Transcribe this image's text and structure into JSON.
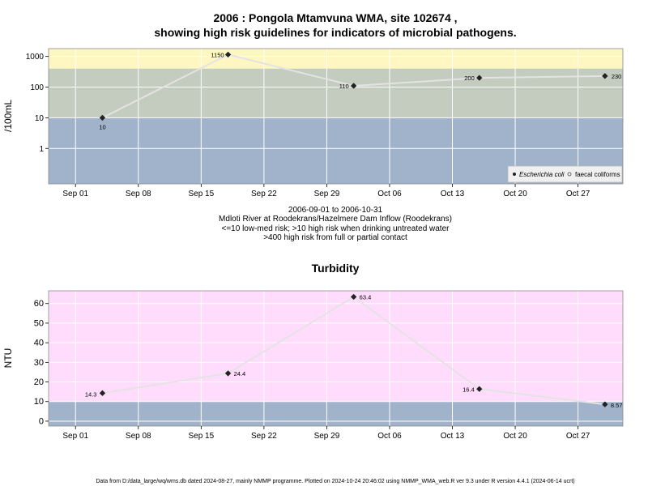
{
  "colors": {
    "high_risk_band": "#fff6c2",
    "med_risk_band": "#c4cbbf",
    "low_risk_band": "#a1b2cb",
    "turbidity_high_band": "#ffdcfc",
    "turbidity_low_band": "#a1b2cb",
    "series_line": "#e3e3e3",
    "marker": "#222222"
  },
  "top_title_line1": "2006 : Pongola Mtamvuna WMA, site 102674 ,",
  "top_title_line2": "showing high risk guidelines for indicators of microbial pathogens.",
  "top_caption": [
    "2006-09-01 to 2006-10-31",
    "Mdloti River at Roodekrans/Hazelmere Dam Inflow (Roodekrans)",
    "<=10 low-med risk; >10 high risk when drinking untreated water",
    ">400 high risk from full or partial contact"
  ],
  "bottom_title": "Turbidity",
  "footer": "Data from D:/data_large/wq/wms.db dated 2024-08-27, mainly NMMP programme. Plotted on 2024-10-24 20:46:02 using NMMP_WMA_web.R ver 9.3 under R version 4.4.1 (2024-06-14 ucrt)",
  "legend": {
    "ecoli_label": "Escherichia coli",
    "coliform_label": "faecal coliforms"
  },
  "chart_data": [
    {
      "type": "line",
      "ylabel": "/100mL",
      "y_scale": "log",
      "y_ticks": [
        "1",
        "10",
        "100",
        "1000"
      ],
      "x_ticks": [
        "Sep 01",
        "Sep 08",
        "Sep 15",
        "Sep 22",
        "Sep 29",
        "Oct 06",
        "Oct 13",
        "Oct 20",
        "Oct 27"
      ],
      "x_range": [
        "2006-08-29",
        "2006-11-01"
      ],
      "y_range": [
        0.07,
        1800
      ],
      "thresholds": [
        10,
        400
      ],
      "series": [
        {
          "name": "Escherichia coli",
          "x": [
            "2006-09-04",
            "2006-09-18",
            "2006-10-02",
            "2006-10-16",
            "2006-10-30"
          ],
          "values": [
            10,
            1150,
            110,
            200,
            230
          ],
          "labels": [
            "10",
            "1150",
            "110",
            "200",
            "230"
          ]
        }
      ]
    },
    {
      "type": "line",
      "title": "Turbidity",
      "ylabel": "NTU",
      "y_ticks": [
        "0",
        "10",
        "20",
        "30",
        "40",
        "50",
        "60"
      ],
      "x_ticks": [
        "Sep 01",
        "Sep 08",
        "Sep 15",
        "Sep 22",
        "Sep 29",
        "Oct 06",
        "Oct 13",
        "Oct 20",
        "Oct 27"
      ],
      "x_range": [
        "2006-08-29",
        "2006-11-01"
      ],
      "y_range": [
        -2.5,
        66.5
      ],
      "thresholds": [
        10
      ],
      "series": [
        {
          "x": [
            "2006-09-04",
            "2006-09-18",
            "2006-10-02",
            "2006-10-16",
            "2006-10-30"
          ],
          "values": [
            14.3,
            24.4,
            63.4,
            16.4,
            8.57
          ],
          "labels": [
            "14.3",
            "24.4",
            "63.4",
            "16.4",
            "8.57"
          ]
        }
      ]
    }
  ]
}
